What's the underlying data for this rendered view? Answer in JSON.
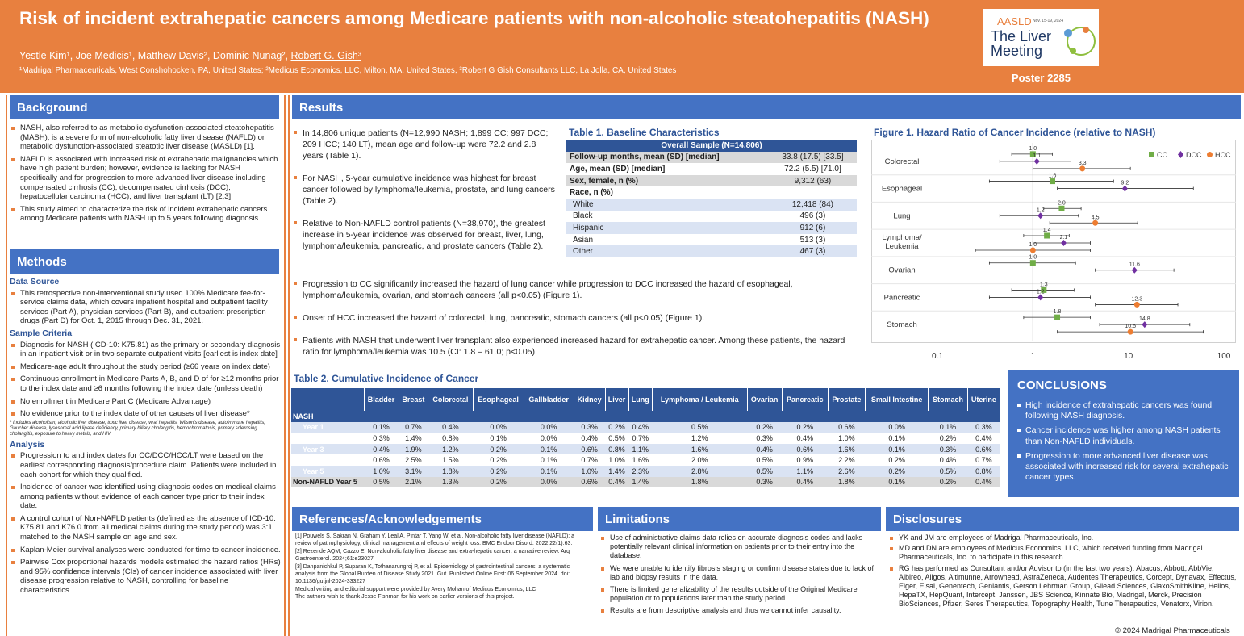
{
  "header": {
    "title": "Risk of incident extrahepatic cancers among Medicare patients with non-alcoholic steatohepatitis (NASH)",
    "authors_plain": "Yestle Kim¹, Joe Medicis¹, Matthew Davis², Dominic Nunag², ",
    "author_underlined": "Robert G. Gish³",
    "affiliations": "¹Madrigal Pharmaceuticals, West Conshohocken, PA, United States; ²Medicus Economics, LLC, Milton, MA, United States, ³Robert G Gish Consultants LLC, La Jolla, CA, United States",
    "logo_org": "AASLD",
    "logo_dates": "Nov. 15-19, 2024",
    "logo_line1": "The Liver",
    "logo_line2": "Meeting",
    "poster": "Poster 2285",
    "colors": {
      "orange": "#e8803f",
      "blue": "#4472c4",
      "navy": "#2f5597"
    }
  },
  "background": {
    "heading": "Background",
    "bullets": [
      "NASH, also referred to as metabolic dysfunction-associated steatohepatitis (MASH), is a severe form of non-alcoholic fatty liver disease (NAFLD) or metabolic dysfunction-associated steatotic liver disease (MASLD) [1].",
      "NAFLD is associated with increased risk of extrahepatic malignancies which have high patient burden; however, evidence is lacking for NASH specifically and for progression to more advanced liver disease including compensated cirrhosis (CC), decompensated cirrhosis (DCC), hepatocellular carcinoma (HCC), and liver transplant (LT) [2,3].",
      "This study aimed to characterize the risk of incident extrahepatic cancers among Medicare patients with NASH up to 5 years following diagnosis."
    ]
  },
  "methods": {
    "heading": "Methods",
    "data_source_title": "Data Source",
    "data_source": [
      "This retrospective non-interventional study used 100% Medicare fee-for-service claims data, which covers inpatient hospital and outpatient facility services (Part A), physician services (Part B), and outpatient prescription drugs (Part D) for Oct. 1, 2015 through Dec. 31, 2021."
    ],
    "criteria_title": "Sample Criteria",
    "criteria": [
      "Diagnosis for NASH (ICD-10: K75.81) as the primary or secondary diagnosis in an inpatient visit or in two separate outpatient visits [earliest is index date]",
      "Medicare-age adult throughout the study period (≥66 years on index date)",
      "Continuous enrollment in Medicare Parts A, B, and D of for ≥12 months prior to the index date and ≥6 months following the index date (unless death)",
      "No enrollment in Medicare Part C (Medicare Advantage)",
      "No evidence prior to the index date of other causes of liver disease*"
    ],
    "footnote": "* Includes alcoholism, alcoholic liver disease, toxic liver disease, viral hepatitis, Wilson's disease, autoimmune hepatitis, Gaucher disease, lysosomal acid lipase deficiency, primary biliary cholangitis, hemochromatosis, primary sclerosing cholangitis, exposure to heavy metals, and HIV",
    "analysis_title": "Analysis",
    "analysis": [
      "Progression to and index dates for CC/DCC/HCC/LT were based on the earliest corresponding diagnosis/procedure claim. Patients were included in each cohort for which they qualified.",
      "Incidence of cancer was identified using diagnosis codes on medical claims among patients without evidence of each cancer type prior to their index date.",
      "A control cohort of Non-NAFLD patients (defined as the absence of ICD-10: K75.81 and K76.0 from all medical claims during the study period) was 3:1 matched to the NASH sample on age and sex.",
      "Kaplan-Meier survival analyses were conducted for time to cancer incidence.",
      "Pairwise Cox proportional hazards models estimated the hazard ratios (HRs) and 95% confidence intervals (CIs) of cancer incidence associated with liver disease progression relative to NASH, controlling for baseline characteristics."
    ]
  },
  "results": {
    "heading": "Results",
    "bullets_top": [
      "In 14,806 unique patients (N=12,990 NASH; 1,899 CC; 997 DCC; 209 HCC; 140 LT), mean age and follow-up were 72.2 and 2.8 years (Table 1).",
      "For NASH, 5-year cumulative incidence was highest for breast cancer followed by lymphoma/leukemia, prostate, and lung cancers (Table 2).",
      "Relative to Non-NAFLD control patients (N=38,970), the greatest increase in 5-year incidence was observed for breast, liver, lung, lymphoma/leukemia, pancreatic, and prostate cancers (Table 2)."
    ],
    "bullets_wide": [
      "Progression to CC significantly increased the hazard of lung cancer while progression to DCC increased the hazard of esophageal, lymphoma/leukemia, ovarian, and stomach cancers (all p<0.05) (Figure 1).",
      "Onset of HCC increased the hazard of colorectal, lung, pancreatic, stomach cancers (all p<0.05) (Figure 1).",
      "Patients with NASH that underwent liver transplant also experienced increased hazard for extrahepatic cancer. Among these patients, the hazard ratio for lymphoma/leukemia was 10.5 (CI: 1.8 – 61.0; p<0.05)."
    ]
  },
  "table1": {
    "title": "Table 1. Baseline Characteristics",
    "header": "Overall Sample (N=14,806)",
    "rows": [
      [
        "Follow-up months, mean (SD) [median]",
        "33.8 (17.5) [33.5]"
      ],
      [
        "Age, mean (SD) [median]",
        "72.2 (5.5) [71.0]"
      ],
      [
        "Sex, female, n (%)",
        "9,312 (63)"
      ],
      [
        "Race, n (%)",
        ""
      ],
      [
        "White",
        "12,418 (84)"
      ],
      [
        "Black",
        "496 (3)"
      ],
      [
        "Hispanic",
        "912 (6)"
      ],
      [
        "Asian",
        "513 (3)"
      ],
      [
        "Other",
        "467 (3)"
      ]
    ]
  },
  "table2": {
    "title": "Table 2. Cumulative Incidence of Cancer",
    "columns": [
      "Bladder",
      "Breast",
      "Colorectal",
      "Esophageal",
      "Gallbladder",
      "Kidney",
      "Liver",
      "Lung",
      "Lymphoma / Leukemia",
      "Ovarian",
      "Pancreatic",
      "Prostate",
      "Small Intestine",
      "Stomach",
      "Uterine"
    ],
    "group": "NASH",
    "rows": [
      {
        "label": "Year 1",
        "values": [
          "0.1%",
          "0.7%",
          "0.4%",
          "0.0%",
          "0.0%",
          "0.3%",
          "0.2%",
          "0.4%",
          "0.5%",
          "0.2%",
          "0.2%",
          "0.6%",
          "0.0%",
          "0.1%",
          "0.3%"
        ]
      },
      {
        "label": "Year 2",
        "values": [
          "0.3%",
          "1.4%",
          "0.8%",
          "0.1%",
          "0.0%",
          "0.4%",
          "0.5%",
          "0.7%",
          "1.2%",
          "0.3%",
          "0.4%",
          "1.0%",
          "0.1%",
          "0.2%",
          "0.4%"
        ]
      },
      {
        "label": "Year 3",
        "values": [
          "0.4%",
          "1.9%",
          "1.2%",
          "0.2%",
          "0.1%",
          "0.6%",
          "0.8%",
          "1.1%",
          "1.6%",
          "0.4%",
          "0.6%",
          "1.6%",
          "0.1%",
          "0.3%",
          "0.6%"
        ]
      },
      {
        "label": "Year 4",
        "values": [
          "0.6%",
          "2.5%",
          "1.5%",
          "0.2%",
          "0.1%",
          "0.7%",
          "1.0%",
          "1.6%",
          "2.0%",
          "0.5%",
          "0.9%",
          "2.2%",
          "0.2%",
          "0.4%",
          "0.7%"
        ]
      },
      {
        "label": "Year 5",
        "values": [
          "1.0%",
          "3.1%",
          "1.8%",
          "0.2%",
          "0.1%",
          "1.0%",
          "1.4%",
          "2.3%",
          "2.8%",
          "0.5%",
          "1.1%",
          "2.6%",
          "0.2%",
          "0.5%",
          "0.8%"
        ]
      }
    ],
    "nonnafld": {
      "label": "Non-NAFLD Year 5",
      "values": [
        "0.5%",
        "2.1%",
        "1.3%",
        "0.2%",
        "0.0%",
        "0.6%",
        "0.4%",
        "1.4%",
        "1.8%",
        "0.3%",
        "0.4%",
        "1.8%",
        "0.1%",
        "0.2%",
        "0.4%"
      ]
    }
  },
  "chart_data": {
    "type": "forest",
    "title": "Figure 1. Hazard Ratio of Cancer Incidence (relative to NASH)",
    "xscale": "log",
    "xlim": [
      0.1,
      100
    ],
    "xticks": [
      "0.1",
      "1",
      "10",
      "100"
    ],
    "categories": [
      "Colorectal",
      "Esophageal",
      "Lung",
      "Lymphoma/ Leukemia",
      "Ovarian",
      "Pancreatic",
      "Stomach"
    ],
    "series": [
      {
        "name": "CC",
        "color": "#70ad47",
        "marker": "square",
        "points": [
          {
            "cat": "Colorectal",
            "value": 1.0,
            "lo": 0.6,
            "hi": 1.6
          },
          {
            "cat": "Esophageal",
            "value": 1.6,
            "lo": 0.35,
            "hi": 7.0
          },
          {
            "cat": "Lung",
            "value": 2.0,
            "lo": 1.3,
            "hi": 3.2
          },
          {
            "cat": "Lymphoma/ Leukemia",
            "value": 1.4,
            "lo": 0.8,
            "hi": 2.4
          },
          {
            "cat": "Ovarian",
            "value": 1.0,
            "lo": 0.35,
            "hi": 2.8
          },
          {
            "cat": "Pancreatic",
            "value": 1.3,
            "lo": 0.6,
            "hi": 2.7
          },
          {
            "cat": "Stomach",
            "value": 1.8,
            "lo": 0.8,
            "hi": 4.0
          }
        ]
      },
      {
        "name": "DCC",
        "color": "#7030a0",
        "marker": "diamond",
        "points": [
          {
            "cat": "Colorectal",
            "value": 1.1,
            "lo": 0.45,
            "hi": 2.5
          },
          {
            "cat": "Esophageal",
            "value": 9.2,
            "lo": 1.8,
            "hi": 48
          },
          {
            "cat": "Lung",
            "value": 1.2,
            "lo": 0.45,
            "hi": 3.0
          },
          {
            "cat": "Lymphoma/ Leukemia",
            "value": 2.1,
            "lo": 1.0,
            "hi": 4.0
          },
          {
            "cat": "Ovarian",
            "value": 11.6,
            "lo": 4.5,
            "hi": 30
          },
          {
            "cat": "Pancreatic",
            "value": 1.2,
            "lo": 0.35,
            "hi": 4.0
          },
          {
            "cat": "Stomach",
            "value": 14.8,
            "lo": 5.0,
            "hi": 44
          }
        ]
      },
      {
        "name": "HCC",
        "color": "#ed7d31",
        "marker": "circle",
        "points": [
          {
            "cat": "Colorectal",
            "value": 3.3,
            "lo": 1.0,
            "hi": 10.5
          },
          {
            "cat": "Lung",
            "value": 4.5,
            "lo": 1.5,
            "hi": 12.5
          },
          {
            "cat": "Lymphoma/ Leukemia",
            "value": 1.0,
            "lo": 0.25,
            "hi": 4.0
          },
          {
            "cat": "Pancreatic",
            "value": 12.3,
            "lo": 4.5,
            "hi": 33
          },
          {
            "cat": "Stomach",
            "value": 10.5,
            "lo": 1.8,
            "hi": 61
          }
        ]
      }
    ]
  },
  "conclusions": {
    "heading": "CONCLUSIONS",
    "bullets": [
      "High incidence of extrahepatic cancers was found following NASH diagnosis.",
      "Cancer incidence was higher among NASH patients than Non-NAFLD individuals.",
      "Progression to more advanced liver disease was associated with increased risk for several extrahepatic cancer types."
    ]
  },
  "references": {
    "heading": "References/Acknowledgements",
    "items": [
      "[1] Pouwels S, Sakran N, Graham Y, Leal A, Pintar T, Yang W, et al. Non-alcoholic fatty liver disease (NAFLD): a review of pathophysiology, clinical management and effects of weight loss. BMC Endocr Disord. 2022;22(1):63.",
      "[2] Rezende AQM, Cazzo E. Non-alcoholic fatty liver disease and extra-hepatic cancer: a narrative review. Arq Gastroenterol. 2024;61:e23027",
      "[3] Danpanichkul P, Suparan K, Tothanarungroj P, et al. Epidemiology of gastrointestinal cancers: a systematic analysis from the Global Burden of Disease Study 2021. Gut. Published Online First: 06 September 2024. doi: 10.1136/gutjnl-2024-333227",
      "Medical writing and editorial support were provided by Avery Mohan of Medicus Economics, LLC",
      "The authors wish to thank Jesse Fishman for his work on earlier versions of this project."
    ]
  },
  "limitations": {
    "heading": "Limitations",
    "bullets": [
      "Use of administrative claims data relies on accurate diagnosis codes and lacks potentially relevant clinical information on patients prior to their entry into the database.",
      "We were unable to identify fibrosis staging or confirm disease states due to lack of lab and biopsy results in the data.",
      "There is limited generalizability of the results outside of the Original Medicare population or to populations later than the study period.",
      "Results are from descriptive analysis and thus we cannot infer causality."
    ]
  },
  "disclosures": {
    "heading": "Disclosures",
    "bullets": [
      "YK and JM are employees of Madrigal Pharmaceuticals, Inc.",
      "MD and DN are employees of Medicus Economics, LLC, which received funding from Madrigal Pharmaceuticals, Inc. to participate in this research.",
      "RG has performed as Consultant and/or Advisor to (in the last two years): Abacus, Abbott, AbbVie, Albireo, Aligos, Altimunne, Arrowhead, AstraZeneca, Audentes Therapeutics, Corcept, Dynavax, Effectus, Eiger, Eisai, Genentech, Genlantis, Gerson Lehrman Group, Gilead Sciences, GlaxoSmithKline, Helios, HepaTX, HepQuant, Intercept, Janssen, JBS Science, Kinnate Bio, Madrigal, Merck, Precision BioSciences, Pfizer, Seres Therapeutics, Topography Health, Tune Therapeutics, Venatorx, Virion."
    ]
  },
  "footer": {
    "copyright": "© 2024 Madrigal Pharmaceuticals"
  }
}
